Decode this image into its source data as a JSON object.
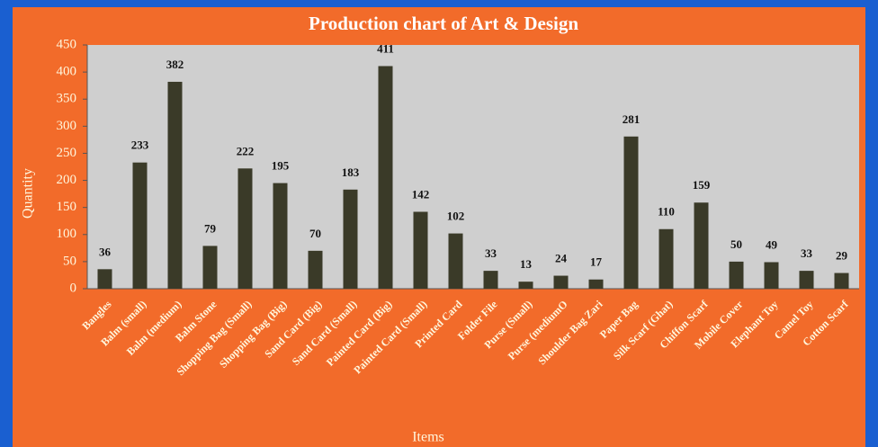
{
  "chart_data": {
    "type": "bar",
    "title": "Production chart of Art & Design",
    "x_label": "Items",
    "y_label": "Quantity",
    "categories": [
      "Bangles",
      "Balm (small)",
      "Balm (medium)",
      "Balm Stone",
      "Shopping Bag (Small)",
      "Shopping Bag (Big)",
      "Sand Card (Big)",
      "Sand Card (Small)",
      "Painted Card (Big)",
      "Painted Card (Small)",
      "Printed Card",
      "Folder File",
      "Purse (Small)",
      "Purse (mediumO",
      "Shoulder Bag Zari",
      "Paper Bag",
      "Silk Scarf (Ghat)",
      "Chiffon Scarf",
      "Mobile Cover",
      "Elephant Toy",
      "Camel Toy",
      "Cotton Scarf"
    ],
    "values": [
      36,
      233,
      382,
      79,
      222,
      195,
      70,
      183,
      411,
      142,
      102,
      33,
      13,
      24,
      17,
      281,
      110,
      159,
      50,
      49,
      33,
      29
    ],
    "color": "#3a3a28",
    "ylim": [
      0,
      450
    ],
    "yticks": [
      0,
      50,
      100,
      150,
      200,
      250,
      300,
      350,
      400,
      450
    ],
    "grid": false
  }
}
